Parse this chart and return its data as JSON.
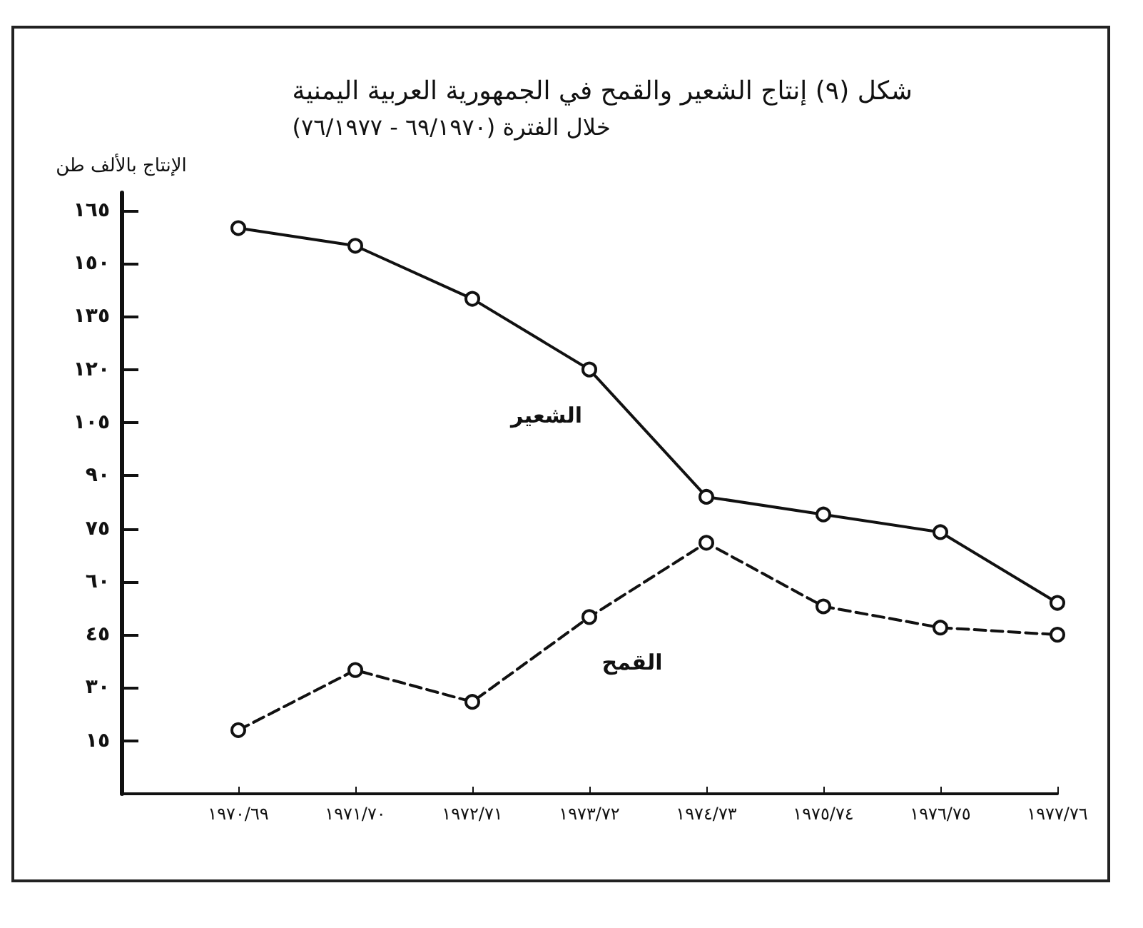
{
  "chart_data": {
    "type": "line",
    "title": "شكل (٩) إنتاج الشعير والقمح في الجمهورية العربية اليمنية",
    "subtitle": "خلال الفترة (٦٩/١٩٧٠ - ٧٦/١٩٧٧)",
    "ylabel": "الإنتاج بالألف طن",
    "categories": [
      "١٩٧٠/٦٩",
      "١٩٧١/٧٠",
      "١٩٧٢/٧١",
      "١٩٧٣/٧٢",
      "١٩٧٤/٧٣",
      "١٩٧٥/٧٤",
      "١٩٧٦/٧٥",
      "١٩٧٧/٧٦"
    ],
    "series": [
      {
        "name": "الشعير",
        "color": "#111111",
        "line_style": "solid",
        "values": [
          160,
          155,
          140,
          120,
          84,
          79,
          74,
          54
        ]
      },
      {
        "name": "القمح",
        "color": "#111111",
        "line_style": "dashed",
        "values": [
          18,
          35,
          26,
          50,
          71,
          53,
          47,
          45
        ]
      }
    ],
    "ylim": [
      0,
      170
    ],
    "yticks": [
      {
        "value": 15,
        "label": "١٥"
      },
      {
        "value": 30,
        "label": "٣٠"
      },
      {
        "value": 45,
        "label": "٤٥"
      },
      {
        "value": 60,
        "label": "٦٠"
      },
      {
        "value": 75,
        "label": "٧٥"
      },
      {
        "value": 90,
        "label": "٩٠"
      },
      {
        "value": 105,
        "label": "١٠٥"
      },
      {
        "value": 120,
        "label": "١٢٠"
      },
      {
        "value": 135,
        "label": "١٣٥"
      },
      {
        "value": 150,
        "label": "١٥٠"
      },
      {
        "value": 165,
        "label": "١٦٥"
      }
    ],
    "grid": false,
    "legend": false,
    "marker": "circle"
  }
}
